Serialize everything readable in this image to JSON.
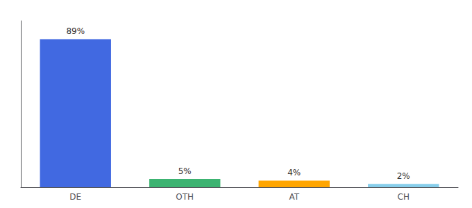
{
  "chart_data": {
    "type": "bar",
    "categories": [
      "DE",
      "OTH",
      "AT",
      "CH"
    ],
    "values": [
      89,
      5,
      4,
      2
    ],
    "value_labels": [
      "89%",
      "5%",
      "4%",
      "2%"
    ],
    "data_labels": true,
    "colors": [
      "#4169E1",
      "#3CB371",
      "#FFA500",
      "#87CEEB"
    ],
    "ylim": [
      0,
      100
    ],
    "tick_labels": "x",
    "grid": false
  }
}
